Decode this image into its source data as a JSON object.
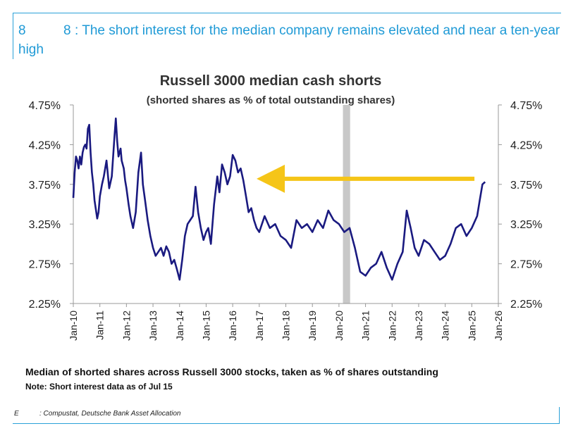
{
  "heading": {
    "num_a": "8",
    "num_b": "8",
    "text": ": The short interest for the median company remains elevated and near a ten-year high"
  },
  "chart_data": {
    "type": "line",
    "title": "Russell 3000 median cash shorts",
    "subtitle": "(shorted shares as % of total outstanding shares)",
    "xlabel": "",
    "ylabel": "",
    "ylim": [
      2.25,
      4.75
    ],
    "xlim": [
      2010,
      2026
    ],
    "y_ticks": [
      "4.75%",
      "4.25%",
      "3.75%",
      "3.25%",
      "2.75%",
      "2.25%"
    ],
    "x_ticks": [
      "Jan-10",
      "Jan-11",
      "Jan-12",
      "Jan-13",
      "Jan-14",
      "Jan-15",
      "Jan-16",
      "Jan-17",
      "Jan-18",
      "Jan-19",
      "Jan-20",
      "Jan-21",
      "Jan-22",
      "Jan-23",
      "Jan-24",
      "Jan-25",
      "Jan-26"
    ],
    "recession_shading": [
      2020.15,
      2020.42
    ],
    "annotation": {
      "type": "arrow",
      "from": [
        2025.1,
        3.82
      ],
      "to": [
        2016.9,
        3.82
      ],
      "color": "#f5c518"
    },
    "series": [
      {
        "name": "Median cash shorts",
        "color": "#1a1a80",
        "x": [
          2010.0,
          2010.05,
          2010.1,
          2010.15,
          2010.2,
          2010.25,
          2010.3,
          2010.35,
          2010.4,
          2010.45,
          2010.5,
          2010.55,
          2010.6,
          2010.65,
          2010.7,
          2010.75,
          2010.8,
          2010.9,
          2010.95,
          2011.0,
          2011.08,
          2011.15,
          2011.25,
          2011.35,
          2011.45,
          2011.55,
          2011.6,
          2011.65,
          2011.7,
          2011.78,
          2011.82,
          2011.9,
          2011.95,
          2012.0,
          2012.08,
          2012.15,
          2012.25,
          2012.35,
          2012.45,
          2012.55,
          2012.62,
          2012.7,
          2012.8,
          2012.9,
          2013.0,
          2013.1,
          2013.2,
          2013.3,
          2013.4,
          2013.5,
          2013.6,
          2013.7,
          2013.8,
          2013.9,
          2014.0,
          2014.1,
          2014.2,
          2014.3,
          2014.4,
          2014.5,
          2014.6,
          2014.7,
          2014.8,
          2014.9,
          2015.0,
          2015.08,
          2015.18,
          2015.3,
          2015.42,
          2015.5,
          2015.6,
          2015.7,
          2015.8,
          2015.9,
          2016.0,
          2016.1,
          2016.2,
          2016.3,
          2016.4,
          2016.5,
          2016.6,
          2016.7,
          2016.8,
          2016.9,
          2017.0,
          2017.2,
          2017.4,
          2017.6,
          2017.8,
          2018.0,
          2018.2,
          2018.4,
          2018.6,
          2018.8,
          2019.0,
          2019.2,
          2019.4,
          2019.6,
          2019.8,
          2020.0,
          2020.2,
          2020.4,
          2020.6,
          2020.8,
          2021.0,
          2021.2,
          2021.4,
          2021.6,
          2021.8,
          2022.0,
          2022.2,
          2022.4,
          2022.55,
          2022.7,
          2022.85,
          2023.0,
          2023.2,
          2023.4,
          2023.6,
          2023.8,
          2024.0,
          2024.2,
          2024.4,
          2024.6,
          2024.8,
          2025.0,
          2025.2,
          2025.3,
          2025.4,
          2025.5
        ],
        "y": [
          3.58,
          3.9,
          4.1,
          4.05,
          3.95,
          4.1,
          4.0,
          4.15,
          4.22,
          4.25,
          4.2,
          4.45,
          4.5,
          4.15,
          3.9,
          3.75,
          3.55,
          3.32,
          3.4,
          3.6,
          3.75,
          3.85,
          4.05,
          3.7,
          3.85,
          4.35,
          4.58,
          4.3,
          4.1,
          4.2,
          4.05,
          3.95,
          3.8,
          3.7,
          3.5,
          3.35,
          3.2,
          3.4,
          3.9,
          4.15,
          3.75,
          3.55,
          3.3,
          3.1,
          2.95,
          2.85,
          2.9,
          2.95,
          2.85,
          2.97,
          2.9,
          2.75,
          2.8,
          2.68,
          2.55,
          2.8,
          3.1,
          3.25,
          3.3,
          3.35,
          3.72,
          3.4,
          3.2,
          3.05,
          3.15,
          3.2,
          3.0,
          3.5,
          3.85,
          3.65,
          4.0,
          3.9,
          3.75,
          3.85,
          4.12,
          4.05,
          3.9,
          3.95,
          3.8,
          3.6,
          3.4,
          3.45,
          3.3,
          3.2,
          3.15,
          3.35,
          3.2,
          3.25,
          3.1,
          3.05,
          2.95,
          3.3,
          3.2,
          3.25,
          3.15,
          3.3,
          3.2,
          3.42,
          3.3,
          3.25,
          3.15,
          3.2,
          2.95,
          2.65,
          2.6,
          2.7,
          2.75,
          2.9,
          2.7,
          2.55,
          2.75,
          2.9,
          3.42,
          3.2,
          2.95,
          2.85,
          3.05,
          3.0,
          2.9,
          2.8,
          2.85,
          3.0,
          3.2,
          3.25,
          3.1,
          3.2,
          3.35,
          3.55,
          3.75,
          3.78
        ]
      }
    ]
  },
  "footnotes": {
    "main": "Median of shorted shares across Russell 3000 stocks, taken as % of shares outstanding",
    "note": "Note: Short interest data as of Jul 15"
  },
  "source": {
    "lead": "E",
    "text": ": Compustat, Deutsche Bank Asset Allocation"
  }
}
